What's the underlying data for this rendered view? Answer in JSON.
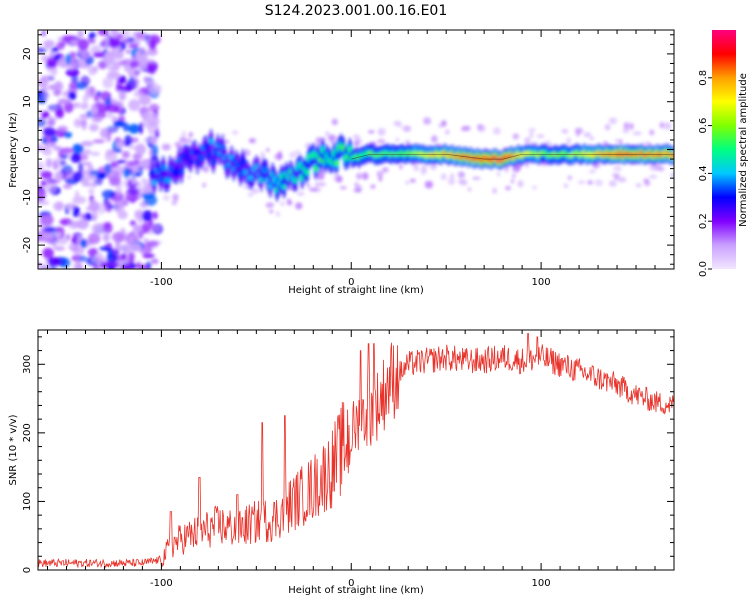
{
  "title": "S124.2023.001.00.16.E01",
  "chart_data": [
    {
      "type": "heatmap",
      "xlabel": "Height of straight line (km)",
      "ylabel": "Frequency (Hz)",
      "xlim": [
        -165,
        170
      ],
      "ylim": [
        -25,
        25
      ],
      "x_ticks": [
        -100,
        0,
        100
      ],
      "y_ticks": [
        -20,
        -10,
        0,
        10,
        20
      ],
      "colorbar": {
        "label": "Normalized spectral amplitude",
        "range": [
          0,
          1
        ],
        "ticks": [
          0.0,
          0.2,
          0.4,
          0.6,
          0.8
        ],
        "colormap": [
          "#f2e6ff",
          "#c9a0ff",
          "#8000ff",
          "#0000ff",
          "#00c8ff",
          "#00ff80",
          "#80ff00",
          "#ffff00",
          "#ffa000",
          "#ff0000",
          "#ff0080"
        ]
      },
      "ridge": {
        "x": [
          -105,
          -95,
          -85,
          -75,
          -65,
          -55,
          -45,
          -40,
          -35,
          -30,
          -20,
          -10,
          -5,
          0,
          10,
          25,
          50,
          70,
          80,
          90,
          100,
          115,
          140,
          170
        ],
        "freq": [
          -6,
          -5,
          -2,
          0,
          -2,
          -4,
          -6,
          -7,
          -7,
          -6,
          -3,
          -1,
          -1,
          -2,
          -1,
          -1,
          -1,
          -2,
          -2,
          -1,
          -1,
          -1,
          -1,
          -1
        ],
        "amplitude": [
          0.35,
          0.35,
          0.3,
          0.35,
          0.35,
          0.35,
          0.4,
          0.45,
          0.45,
          0.45,
          0.5,
          0.5,
          0.55,
          0.5,
          0.55,
          0.55,
          0.75,
          0.9,
          0.95,
          0.7,
          0.6,
          0.6,
          0.85,
          0.8
        ]
      },
      "noise_region_x": [
        -165,
        -102
      ]
    },
    {
      "type": "line",
      "xlabel": "Height of straight line (km)",
      "ylabel": "SNR (10 * v/v)",
      "xlim": [
        -165,
        170
      ],
      "ylim": [
        0,
        350
      ],
      "x_ticks": [
        -100,
        0,
        100
      ],
      "y_ticks": [
        0,
        100,
        200,
        300
      ],
      "color": "#e8322a",
      "trend": {
        "x": [
          -165,
          -110,
          -100,
          -95,
          -90,
          -80,
          -70,
          -60,
          -50,
          -40,
          -30,
          -20,
          -10,
          0,
          5,
          10,
          15,
          20,
          25,
          30,
          40,
          50,
          60,
          70,
          80,
          90,
          100,
          110,
          120,
          130,
          140,
          150,
          160,
          170
        ],
        "y": [
          10,
          10,
          15,
          35,
          45,
          55,
          65,
          60,
          70,
          75,
          100,
          120,
          150,
          200,
          220,
          230,
          245,
          275,
          285,
          300,
          305,
          310,
          305,
          305,
          310,
          305,
          310,
          300,
          290,
          280,
          270,
          255,
          245,
          240
        ]
      },
      "spikes": [
        {
          "x": -95,
          "y": 85
        },
        {
          "x": -80,
          "y": 135
        },
        {
          "x": -60,
          "y": 110
        },
        {
          "x": -47,
          "y": 215
        },
        {
          "x": -35,
          "y": 225
        },
        {
          "x": 5,
          "y": 320
        },
        {
          "x": 9,
          "y": 330
        },
        {
          "x": 12,
          "y": 330
        },
        {
          "x": 93,
          "y": 345
        },
        {
          "x": 98,
          "y": 340
        }
      ]
    }
  ]
}
